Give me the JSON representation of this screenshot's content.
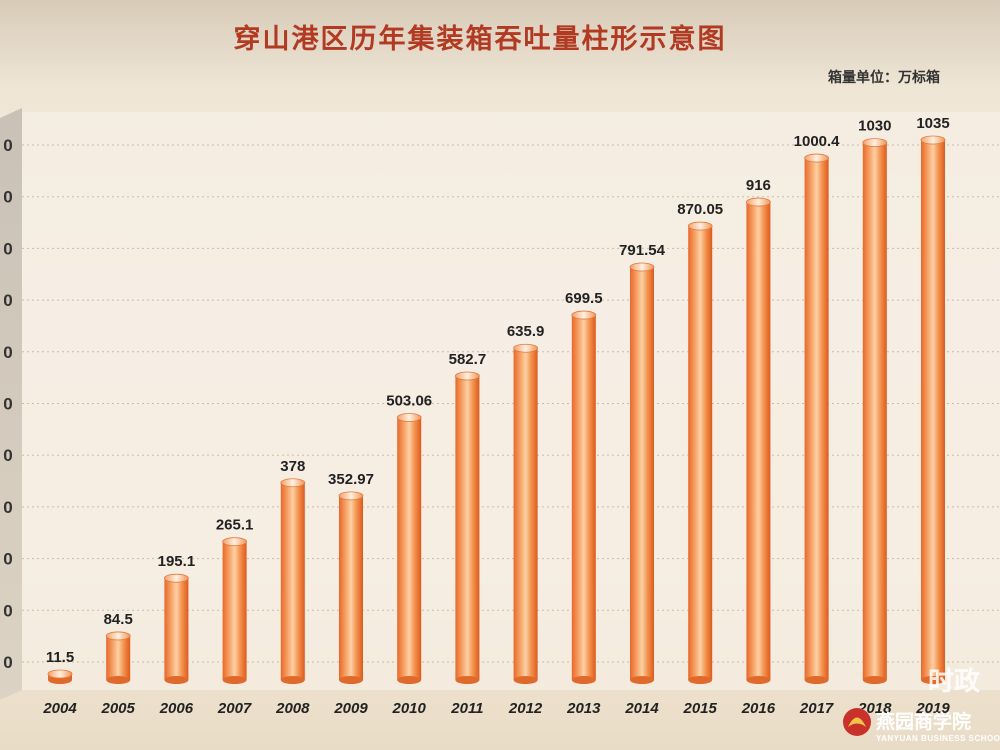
{
  "chart_data": {
    "type": "bar",
    "title": "穿山港区历年集装箱吞吐量柱形示意图",
    "unit_label": "箱量单位：万标箱",
    "categories": [
      "2004",
      "2005",
      "2006",
      "2007",
      "2008",
      "2009",
      "2010",
      "2011",
      "2012",
      "2013",
      "2014",
      "2015",
      "2016",
      "2017",
      "2018",
      "2019"
    ],
    "values": [
      11.5,
      84.5,
      195.1,
      265.1,
      378,
      352.97,
      503.06,
      582.7,
      635.9,
      699.5,
      791.54,
      870.05,
      916,
      1000.4,
      1030,
      1035
    ],
    "value_labels": [
      "11.5",
      "84.5",
      "195.1",
      "265.1",
      "378",
      "352.97",
      "503.06",
      "582.7",
      "635.9",
      "699.5",
      "791.54",
      "870.05",
      "916",
      "1000.4",
      "1030",
      "1035"
    ],
    "x_tick_labels": [
      "2004",
      "2005",
      "2006",
      "2007",
      "2008",
      "2009",
      "2010",
      "2011",
      "2012",
      "2013",
      "2014",
      "2015",
      "2016",
      "2017",
      "2018",
      "2019"
    ],
    "y_tick_labels": [
      "0",
      "0",
      "0",
      "0",
      "0",
      "0",
      "0",
      "0",
      "0",
      "0",
      "0"
    ],
    "ylim": [
      0,
      1050
    ],
    "grid": true,
    "bar_color": "#f0893a"
  },
  "logo": {
    "text": "燕园商学院",
    "subtext": "YANYUAN BUSINESS SCHOOL"
  },
  "watermark": "时政"
}
